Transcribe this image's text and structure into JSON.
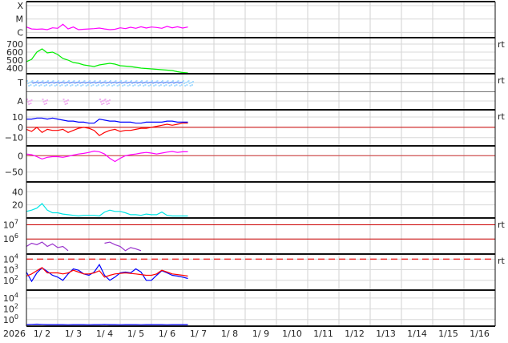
{
  "chart_data": {
    "type": "line",
    "x_start": "2026-01-02T00:00",
    "x_end": "2026-01-17T00:00",
    "year_label": "2026",
    "x_tick_labels": [
      "1/ 2",
      "1/ 3",
      "1/ 4",
      "1/ 5",
      "1/ 6",
      "1/ 7",
      "1/ 8",
      "1/ 9",
      "1/10",
      "1/11",
      "1/12",
      "1/13",
      "1/14",
      "1/15",
      "1/16"
    ],
    "grid": true,
    "times": [
      "2026-01-02T00:00",
      "2026-01-02T04:00",
      "2026-01-02T08:00",
      "2026-01-02T12:00",
      "2026-01-02T16:00",
      "2026-01-02T20:00",
      "2026-01-03T00:00",
      "2026-01-03T04:00",
      "2026-01-03T08:00",
      "2026-01-03T12:00",
      "2026-01-03T16:00",
      "2026-01-03T20:00",
      "2026-01-04T00:00",
      "2026-01-04T04:00",
      "2026-01-04T08:00",
      "2026-01-04T12:00",
      "2026-01-04T16:00",
      "2026-01-04T20:00",
      "2026-01-05T00:00",
      "2026-01-05T04:00",
      "2026-01-05T08:00",
      "2026-01-05T12:00",
      "2026-01-05T16:00",
      "2026-01-05T20:00",
      "2026-01-06T00:00",
      "2026-01-06T04:00",
      "2026-01-06T08:00",
      "2026-01-06T12:00",
      "2026-01-06T16:00",
      "2026-01-06T20:00",
      "2026-01-07T00:00",
      "2026-01-07T04:00"
    ],
    "panels": [
      {
        "scale": "log",
        "ylim": [
          4e-07,
          0.0002
        ],
        "ticks": [
          {
            "v": 0.0001,
            "label": "X"
          },
          {
            "v": 1e-05,
            "label": "M"
          },
          {
            "v": 1e-06,
            "label": "C"
          }
        ],
        "right_label": "",
        "series": [
          {
            "color": "#ff00ff",
            "values": [
              2.5e-06,
              1.8e-06,
              1.7e-06,
              1.8e-06,
              1.6e-06,
              2.2e-06,
              2e-06,
              4e-06,
              1.8e-06,
              2.5e-06,
              1.6e-06,
              1.7e-06,
              1.8e-06,
              1.9e-06,
              2.1e-06,
              1.8e-06,
              1.6e-06,
              1.7e-06,
              2.2e-06,
              1.9e-06,
              2.4e-06,
              2e-06,
              2.6e-06,
              2.1e-06,
              2.5e-06,
              2.3e-06,
              2e-06,
              2.8e-06,
              2.2e-06,
              2.6e-06,
              2.1e-06,
              2.5e-06
            ]
          }
        ]
      },
      {
        "scale": "linear",
        "ylim": [
          330,
          780
        ],
        "ticks": [
          {
            "v": 700,
            "label": "700"
          },
          {
            "v": 600,
            "label": "600"
          },
          {
            "v": 500,
            "label": "500"
          },
          {
            "v": 400,
            "label": "400"
          }
        ],
        "right_label": "rt",
        "series": [
          {
            "color": "#00ee00",
            "values": [
              480,
              510,
              600,
              640,
              590,
              600,
              570,
              520,
              500,
              470,
              460,
              440,
              430,
              420,
              440,
              450,
              460,
              450,
              430,
              425,
              420,
              410,
              400,
              395,
              390,
              385,
              380,
              375,
              370,
              355,
              345,
              340
            ]
          }
        ]
      },
      {
        "scale": "category",
        "ticks": [
          {
            "v": 1,
            "label": "T"
          },
          {
            "v": 0,
            "label": "A"
          }
        ],
        "right_label": "rt",
        "series": [
          {
            "color": "#aaddff",
            "values": [
              1,
              1,
              1,
              1,
              1,
              1,
              1,
              1,
              1,
              1,
              1,
              1,
              1,
              1,
              1,
              1,
              1,
              1,
              1,
              1,
              1,
              1,
              1,
              1,
              1,
              1,
              1,
              1,
              1,
              1,
              1,
              1
            ]
          },
          {
            "color": "#f0b0f0",
            "values": [
              0,
              null,
              null,
              0,
              null,
              null,
              null,
              0,
              null,
              null,
              null,
              null,
              null,
              null,
              0,
              0,
              null,
              null,
              null,
              null,
              null,
              null,
              null,
              null,
              null,
              null,
              null,
              null,
              null,
              null,
              null,
              null
            ]
          }
        ]
      },
      {
        "scale": "linear",
        "ylim": [
          -18,
          17
        ],
        "ticks": [
          {
            "v": 10,
            "label": "10"
          },
          {
            "v": 0,
            "label": "0"
          },
          {
            "v": -10,
            "label": "−10"
          }
        ],
        "right_label": "rt",
        "ref_lines": [
          {
            "v": 0,
            "color": "#cc0000"
          }
        ],
        "series": [
          {
            "color": "#0000ff",
            "values": [
              8,
              8,
              9,
              9,
              8,
              9,
              8,
              7,
              6,
              6,
              5,
              5,
              4,
              4,
              8,
              7,
              6,
              6,
              5,
              5,
              5,
              4,
              4,
              5,
              5,
              5,
              5,
              6,
              6,
              5,
              5,
              5
            ]
          },
          {
            "color": "#ff0000",
            "values": [
              -2,
              -4,
              0,
              -5,
              -2,
              -3,
              -3,
              -2,
              -5,
              -3,
              -1,
              0,
              -1,
              -3,
              -8,
              -5,
              -3,
              -2,
              -4,
              -3,
              -3,
              -2,
              -1,
              -1,
              0,
              1,
              2,
              3,
              2,
              3,
              4,
              4
            ]
          }
        ]
      },
      {
        "scale": "linear",
        "ylim": [
          -80,
          30
        ],
        "ticks": [
          {
            "v": 0,
            "label": "0"
          },
          {
            "v": -50,
            "label": "−50"
          }
        ],
        "right_label": "",
        "ref_lines": [
          {
            "v": 0,
            "color": "#cc3333"
          }
        ],
        "series": [
          {
            "color": "#ff00ff",
            "values": [
              5,
              3,
              -3,
              -10,
              -5,
              -3,
              -3,
              -5,
              -2,
              2,
              5,
              7,
              10,
              14,
              12,
              5,
              -8,
              -18,
              -8,
              0,
              3,
              5,
              8,
              10,
              8,
              5,
              8,
              11,
              13,
              10,
              12,
              12
            ]
          }
        ]
      },
      {
        "scale": "linear",
        "ylim": [
          0,
          55
        ],
        "ticks": [
          {
            "v": 40,
            "label": "40"
          },
          {
            "v": 20,
            "label": "20"
          }
        ],
        "right_label": "",
        "series": [
          {
            "color": "#00e5e5",
            "values": [
              10,
              12,
              15,
              22,
              12,
              8,
              8,
              6,
              5,
              4,
              3,
              4,
              4,
              4,
              3,
              9,
              12,
              10,
              10,
              8,
              5,
              5,
              4,
              6,
              5,
              5,
              9,
              4,
              3,
              3,
              3,
              3
            ]
          }
        ]
      },
      {
        "scale": "log",
        "ylim": [
          87000.0,
          30000000.0
        ],
        "ticks": [
          {
            "v": 10000000.0,
            "label": "7"
          },
          {
            "v": 1000000.0,
            "label": "6"
          }
        ],
        "tick_base": "10",
        "right_label": "rt",
        "ref_lines": [
          {
            "v": 10000000.0,
            "color": "#cc0000"
          },
          {
            "v": 1000000.0,
            "color": "#cc0000"
          }
        ],
        "series": [
          {
            "color": "#9933cc",
            "values": [
              300000.0,
              500000.0,
              400000.0,
              600000.0,
              300000.0,
              450000.0,
              250000.0,
              300000.0,
              150000.0,
              null,
              null,
              null,
              null,
              null,
              null,
              500000.0,
              600000.0,
              400000.0,
              300000.0,
              150000.0,
              250000.0,
              200000.0,
              150000.0,
              null,
              null,
              null,
              null,
              null,
              null,
              null,
              null,
              null
            ]
          }
        ]
      },
      {
        "scale": "log",
        "ylim": [
          12,
          30000.0
        ],
        "ticks": [
          {
            "v": 10000.0,
            "label": "4"
          },
          {
            "v": 1000.0,
            "label": "3"
          },
          {
            "v": 100.0,
            "label": "2"
          }
        ],
        "tick_base": "10",
        "right_label": "rt",
        "ref_lines": [
          {
            "v": 10000.0,
            "color": "#ee3333",
            "dashed": true
          }
        ],
        "series": [
          {
            "color": "#0000ff",
            "values": [
              600,
              80,
              500,
              1500,
              700,
              300,
              200,
              100,
              400,
              1200,
              900,
              400,
              300,
              600,
              3000,
              300,
              100,
              200,
              500,
              600,
              500,
              1200,
              600,
              100,
              100,
              300,
              800,
              500,
              300,
              250,
              200,
              150
            ]
          },
          {
            "color": "#ff0000",
            "values": [
              250,
              400,
              800,
              1600,
              500,
              500,
              500,
              400,
              500,
              900,
              600,
              400,
              400,
              500,
              800,
              200,
              300,
              400,
              450,
              500,
              450,
              400,
              350,
              300,
              300,
              400,
              900,
              600,
              400,
              350,
              300,
              250
            ]
          }
        ]
      },
      {
        "scale": "log",
        "ylim": [
          0.06,
          300000.0
        ],
        "ticks": [
          {
            "v": 10000.0,
            "label": "4"
          },
          {
            "v": 100.0,
            "label": "2"
          },
          {
            "v": 1,
            "label": "0"
          }
        ],
        "tick_base": "10",
        "right_label": "",
        "series": [
          {
            "color": "#0000ff",
            "values": [
              0.12,
              0.13,
              0.14,
              0.13,
              0.12,
              0.12,
              0.12,
              0.12,
              0.11,
              0.12,
              0.12,
              0.12,
              0.11,
              0.12,
              0.12,
              0.13,
              0.12,
              0.12,
              0.11,
              0.12,
              0.12,
              0.12,
              0.11,
              0.12,
              0.12,
              0.12,
              0.12,
              0.11,
              0.12,
              0.12,
              0.12,
              0.12
            ]
          }
        ]
      }
    ]
  }
}
